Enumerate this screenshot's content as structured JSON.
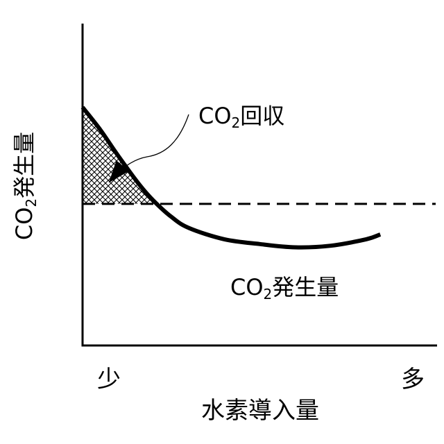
{
  "chart_data": {
    "type": "line",
    "title": "",
    "xlabel": "水素導入量",
    "ylabel": {
      "prefix": "CO",
      "sub": "2",
      "suffix": "発生量"
    },
    "x_tick_labels": {
      "low": "少",
      "high": "多"
    },
    "axis_ranges": {
      "x": [
        0,
        1
      ],
      "y": [
        0,
        1
      ]
    },
    "grid": false,
    "legend": "none",
    "series": [
      {
        "name": "",
        "values": [
          {
            "x": 0.0,
            "y": 0.74
          },
          {
            "x": 0.05,
            "y": 0.67
          },
          {
            "x": 0.1,
            "y": 0.59
          },
          {
            "x": 0.16,
            "y": 0.5
          },
          {
            "x": 0.2,
            "y": 0.45
          },
          {
            "x": 0.25,
            "y": 0.4
          },
          {
            "x": 0.3,
            "y": 0.365
          },
          {
            "x": 0.4,
            "y": 0.33
          },
          {
            "x": 0.5,
            "y": 0.315
          },
          {
            "x": 0.6,
            "y": 0.305
          },
          {
            "x": 0.7,
            "y": 0.31
          },
          {
            "x": 0.8,
            "y": 0.33
          },
          {
            "x": 0.84,
            "y": 0.345
          }
        ]
      }
    ],
    "reference_line": {
      "y": 0.44,
      "style": "dashed"
    },
    "shaded_region": {
      "between": [
        "series",
        "reference_line"
      ],
      "pattern": "crosshatch"
    },
    "annotations": [
      {
        "id": "recovery",
        "prefix": "CO",
        "sub": "2",
        "suffix": "回収"
      },
      {
        "id": "generation",
        "prefix": "CO",
        "sub": "2",
        "suffix": "発生量"
      }
    ]
  },
  "colors": {
    "line": "#000000",
    "background": "#ffffff"
  }
}
